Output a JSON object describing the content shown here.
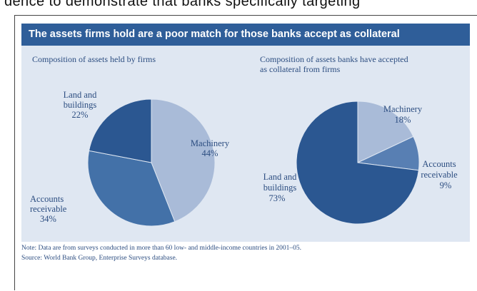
{
  "page_top_text": "dence to demonstrate that banks specifically targeting",
  "banner_title": "The assets firms hold are a poor match for those banks accept as collateral",
  "colors": {
    "banner": "#2f5e99",
    "panel_bg": "#dfe7f2",
    "text_blue": "#2c4d80",
    "slice_dark": "#2b5791",
    "slice_medium": "#4371a8",
    "slice_mid_light": "#587fb3",
    "slice_light": "#a9bbd8"
  },
  "chart_data": [
    {
      "type": "pie",
      "title": "Composition of assets held by firms",
      "slices": [
        {
          "name": "Machinery",
          "value": 44,
          "label": "44%",
          "color": "#a9bbd8"
        },
        {
          "name": "Accounts receivable",
          "value": 34,
          "label": "34%",
          "color": "#4371a8"
        },
        {
          "name": "Land and buildings",
          "value": 22,
          "label": "22%",
          "color": "#2b5791"
        }
      ]
    },
    {
      "type": "pie",
      "title": "Composition of assets banks have accepted as collateral from firms",
      "slices": [
        {
          "name": "Machinery",
          "value": 18,
          "label": "18%",
          "color": "#a9bbd8"
        },
        {
          "name": "Accounts receivable",
          "value": 9,
          "label": "9%",
          "color": "#587fb3"
        },
        {
          "name": "Land and buildings",
          "value": 73,
          "label": "73%",
          "color": "#2b5791"
        }
      ]
    }
  ],
  "notes": {
    "note": "Note: Data are from surveys conducted in more than 60 low- and middle-income countries in 2001–05.",
    "source": "Source: World Bank Group, Enterprise Surveys database."
  }
}
